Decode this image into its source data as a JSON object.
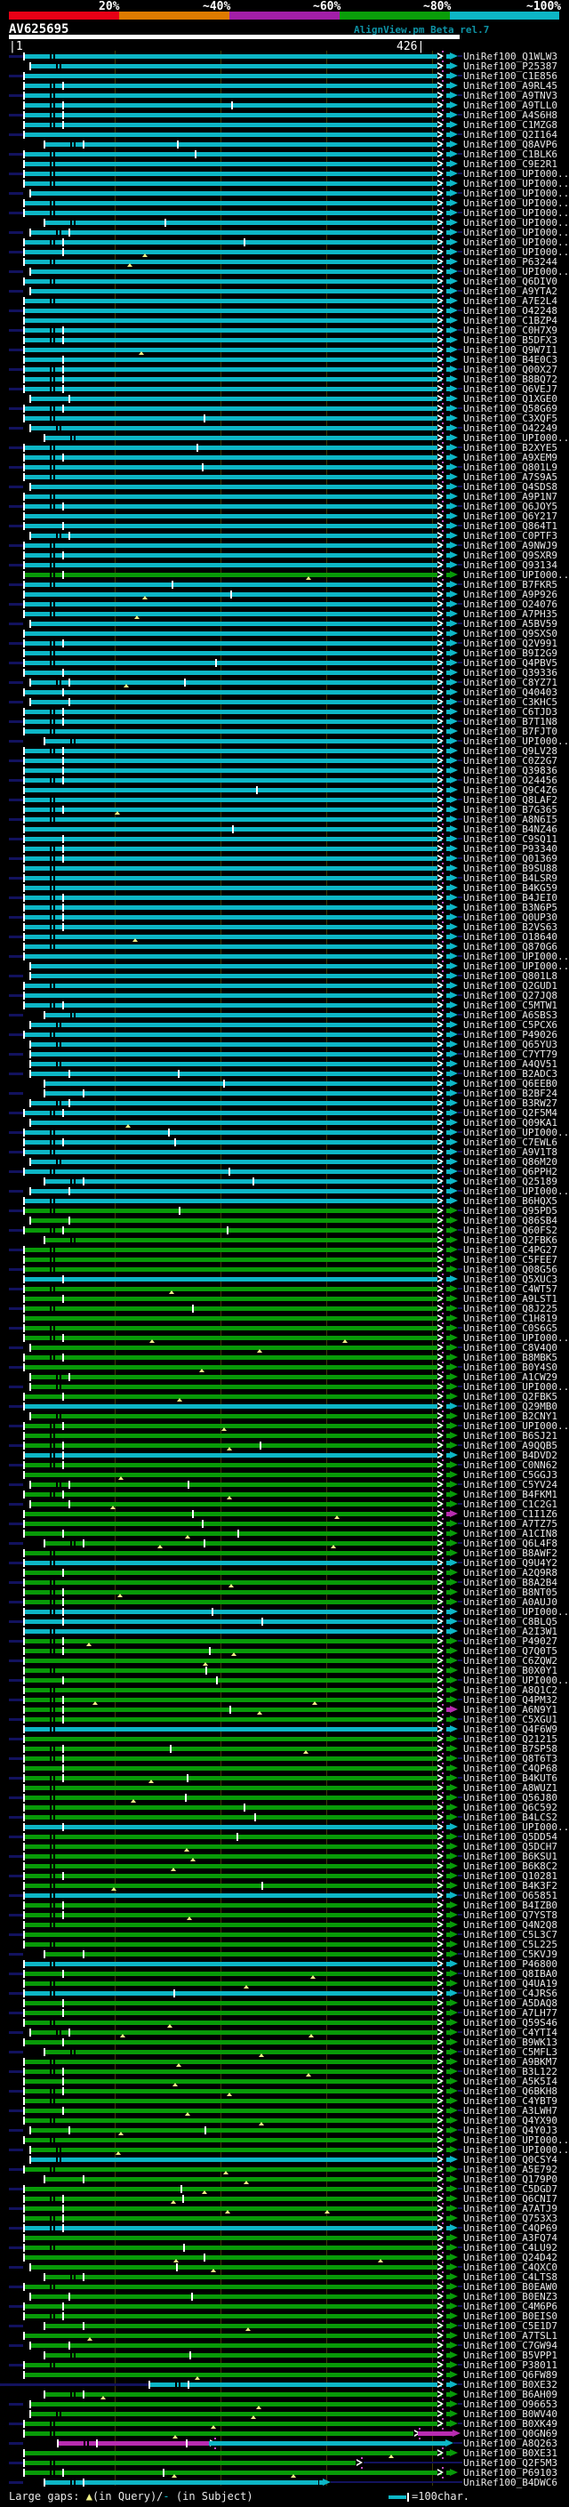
{
  "header": {
    "key": {
      "labels": [
        "20%",
        "~40%",
        "~60%",
        "~80%",
        "~100%"
      ],
      "colors": [
        "#e80016",
        "#de7b00",
        "#a21fa8",
        "#0a9e0a",
        "#0db6c6"
      ]
    },
    "title": "AlignView.pm Beta rel.7",
    "query_id": "AV625695",
    "ruler_left": "|1",
    "ruler_right": "426|"
  },
  "footer": {
    "gaps_label": "Large gaps: ",
    "gap_query_symbol": "▲",
    "gap_query_text": "(in Query)/",
    "gap_subject_symbol": "- ",
    "gap_subject_text": "(in Subject)",
    "scale_label": "=100char."
  },
  "colors": {
    "cyan": "#0db6c6",
    "green": "#089a08",
    "magenta": "#b82cb0",
    "navy": "#12125e",
    "olive": "#3c3c06",
    "yellow": "#efef86",
    "white": "#ffffff",
    "background": "#000000"
  },
  "rows": {
    "prefix": "UniRef100_",
    "ids": [
      "Q1WLW3",
      "P25387",
      "C1E856",
      "A9RL45",
      "A9TNV3",
      "A9TLL0",
      "A4S6H8",
      "C1MZG8",
      "Q2I164",
      "Q8AVP6",
      "C1BLK6",
      "C9E2R1",
      "UPI000..",
      "UPI000..",
      "UPI000..",
      "UPI000..",
      "UPI000..",
      "UPI000..",
      "UPI000..",
      "UPI000..",
      "UPI000..",
      "P63244",
      "UPI000..",
      "Q6DIV0",
      "A9YTA2",
      "A7E2L4",
      "O42248",
      "C1BZP4",
      "C0H7X9",
      "B5DFX3",
      "Q9W7I1",
      "B4E0C3",
      "Q00X27",
      "B8BQ72",
      "Q6VEJ7",
      "Q1XGE0",
      "Q58G69",
      "C3XQF5",
      "O42249",
      "UPI000..",
      "B2XYE5",
      "A9XEM9",
      "Q801L9",
      "A7S9A5",
      "Q4SDS8",
      "A9P1N7",
      "Q6JOY5",
      "Q6Y217",
      "Q864T1",
      "C0PTF3",
      "A9NWJ9",
      "Q9SXR9",
      "Q93134",
      "UPI000..",
      "B7FKR5",
      "A9P926",
      "O24076",
      "A7PH35",
      "A5BV59",
      "Q9SXS0",
      "Q2V991",
      "B9I2G9",
      "Q4PBV5",
      "Q39336",
      "C8YZ71",
      "Q40403",
      "C3KHC5",
      "C6TJD3",
      "B7T1N8",
      "B7FJT0",
      "UPI000..",
      "Q9LV28",
      "C0Z2G7",
      "Q39836",
      "O24456",
      "Q9C4Z6",
      "Q8LAF2",
      "B7G365",
      "A8N6I5",
      "B4NZ46",
      "C9SQ11",
      "P93340",
      "Q01369",
      "B9SU88",
      "B4LSR9",
      "B4KG59",
      "B4JEI0",
      "B3N6P5",
      "Q0UP30",
      "B2VS63",
      "O18640",
      "Q870G6",
      "UPI000..",
      "UPI000..",
      "Q801L8",
      "Q2GUD1",
      "Q27JQ8",
      "C5MTW1",
      "A6SBS3",
      "C5PCX6",
      "P49026",
      "Q65YU3",
      "C7YT79",
      "A4QV51",
      "B2ADC3",
      "Q6EEB0",
      "B2BF24",
      "B3RW27",
      "Q2F5M4",
      "Q09KA1",
      "UPI000..",
      "C7EWL6",
      "A9V1T8",
      "Q86M20",
      "Q6PPH2",
      "Q25189",
      "UPI000..",
      "B6HQX5",
      "Q95PD5",
      "Q86SB4",
      "Q60FS2",
      "Q2FBK6",
      "C4PG27",
      "C5FEE7",
      "Q08G56",
      "Q5XUC3",
      "C4WT57",
      "A9LST1",
      "Q8J225",
      "C1H819",
      "C0S6G5",
      "UPI000..",
      "C8V4Q0",
      "B8MBK5",
      "B0Y4S0",
      "A1CW29",
      "UPI000..",
      "Q2FBK5",
      "Q29MB0",
      "B2CNY1",
      "UPI000..",
      "B6SJ21",
      "A9QQB5",
      "B4DVD2",
      "C0NN62",
      "C5GGJ3",
      "C5YV24",
      "B4FKM1",
      "C1C2G1",
      "C1I1Z6",
      "A7TZ75",
      "A1CIN8",
      "Q6L4F8",
      "B8AWF2",
      "Q9U4Y2",
      "A2Q9R8",
      "B8A2B4",
      "B8NT05",
      "A0AUJ0",
      "UPI000..",
      "C8BLQ5",
      "A2I3W1",
      "P49027",
      "Q7Q0T5",
      "C6ZQW2",
      "B0X0Y1",
      "UPI000..",
      "A8Q1C2",
      "Q4PM32",
      "A6N9Y1",
      "C5XGU1",
      "Q4F6W9",
      "Q21215",
      "B7SP58",
      "Q8T6T3",
      "C4QP68",
      "B4KUT6",
      "A8WUZ1",
      "Q56J80",
      "Q6C592",
      "B4LCS2",
      "UPI000..",
      "Q5DD54",
      "Q5DCH7",
      "B6KSU1",
      "B6K8C2",
      "Q10281",
      "B4K3F2",
      "O65851",
      "B4IZB0",
      "Q7YST8",
      "Q4N2Q8",
      "C5L3C7",
      "C5L225",
      "C5KVJ9",
      "P46800",
      "Q8IBA0",
      "Q4UA19",
      "C4JRS6",
      "A5DAQ8",
      "A7LH77",
      "Q59S46",
      "C4YTI4",
      "B9WK13",
      "C5MFL3",
      "A9BKM7",
      "B3L122",
      "A5K5I4",
      "Q6BKH8",
      "C4YBT9",
      "A3LWH7",
      "Q4YX90",
      "Q4Y0J3",
      "UPI000..",
      "UPI000..",
      "Q0CSY4",
      "A5E792",
      "Q179P0",
      "C5DGD7",
      "Q6CNI7",
      "A7ATJ9",
      "Q753X3",
      "C4QP69",
      "A3FQ74",
      "C4LU92",
      "Q24D42",
      "C4QXC0",
      "C4LTS8",
      "B0EAW0",
      "B0ENZ3",
      "C4M6P6",
      "B0EIS0",
      "C5E1D7",
      "A7TSL1",
      "C7GW94",
      "B5VPP1",
      "P38011",
      "Q6FW89",
      "B0XE32",
      "B6AH09",
      "O96653",
      "B0WV40",
      "B0XK49",
      "Q0GN69",
      "A8Q263",
      "B0XE31",
      "Q2F5M3",
      "P69103",
      "B4DWC6"
    ],
    "green_start_index": 118,
    "green_in_cyan": [
      53
    ],
    "cyan_in_green": [
      125,
      138,
      143,
      154,
      159,
      160,
      161,
      171,
      181,
      188,
      195,
      198,
      215,
      222,
      238,
      244,
      248
    ],
    "magenta_arrow": [
      149,
      169
    ],
    "specials": {
      "238": {
        "lead": [
          0,
          167
        ],
        "s": 168
      },
      "243": {
        "e": 465,
        "seg2": [
          470,
          505
        ],
        "seg2_color": "magenta",
        "arrow": "magenta"
      },
      "244": {
        "s": 65,
        "color": "magenta",
        "e": 235,
        "seg2": [
          235,
          497
        ],
        "seg2_color": "cyan",
        "arrow": "cyan"
      },
      "246": {
        "e": 400,
        "no_fill": true,
        "tail": true
      },
      "248": {
        "e": 358,
        "tail": true
      }
    }
  },
  "chart_data": {
    "type": "bar",
    "orientation": "horizontal",
    "title": "AlignView.pm Beta rel.7",
    "query": "AV625695",
    "query_length": 426,
    "x_axis_ticks": [
      1,
      426
    ],
    "legend": {
      "identity_key_labels": [
        "20%",
        "~40%",
        "~60%",
        "~80%",
        "~100%"
      ],
      "large_gaps": "Large gaps: ▲(in Query)/- (in Subject)",
      "scale": "=100char."
    },
    "categories_ref": "rows.ids (UniRef100_ prefix applies)",
    "series": [
      {
        "name": "approx_identity_pct",
        "values": [
          100,
          100,
          100,
          100,
          100,
          100,
          100,
          100,
          100,
          100,
          100,
          100,
          100,
          100,
          100,
          100,
          100,
          100,
          100,
          100,
          100,
          100,
          100,
          100,
          100,
          100,
          100,
          100,
          100,
          100,
          100,
          100,
          100,
          100,
          100,
          100,
          100,
          100,
          100,
          100,
          100,
          100,
          100,
          100,
          100,
          100,
          100,
          100,
          100,
          100,
          100,
          100,
          100,
          80,
          100,
          100,
          100,
          100,
          100,
          100,
          100,
          100,
          100,
          100,
          100,
          100,
          100,
          100,
          100,
          100,
          100,
          100,
          100,
          100,
          100,
          100,
          100,
          100,
          100,
          100,
          100,
          100,
          100,
          100,
          100,
          100,
          100,
          100,
          100,
          100,
          100,
          100,
          100,
          100,
          100,
          100,
          100,
          100,
          100,
          100,
          100,
          100,
          100,
          100,
          100,
          100,
          100,
          100,
          100,
          100,
          100,
          100,
          100,
          100,
          100,
          100,
          100,
          100,
          80,
          80,
          80,
          80,
          80,
          80,
          80,
          100,
          80,
          80,
          80,
          80,
          80,
          80,
          80,
          80,
          80,
          80,
          80,
          80,
          100,
          80,
          80,
          80,
          80,
          100,
          80,
          80,
          80,
          80,
          80,
          80,
          80,
          80,
          80,
          80,
          100,
          80,
          80,
          80,
          80,
          100,
          100,
          100,
          80,
          80,
          80,
          80,
          80,
          80,
          80,
          80,
          80,
          100,
          80,
          80,
          80,
          80,
          80,
          80,
          80,
          80,
          80,
          100,
          80,
          80,
          80,
          80,
          80,
          80,
          100,
          80,
          80,
          80,
          80,
          80,
          80,
          100,
          80,
          80,
          100,
          80,
          80,
          80,
          80,
          80,
          80,
          80,
          80,
          80,
          80,
          80,
          80,
          80,
          80,
          80,
          80,
          100,
          80,
          80,
          80,
          80,
          80,
          80,
          100,
          80,
          80,
          80,
          80,
          80,
          80,
          80,
          80,
          80,
          80,
          80,
          80,
          80,
          80,
          80,
          100,
          80,
          80,
          80,
          60,
          100,
          80,
          80,
          80,
          100
        ]
      }
    ]
  }
}
